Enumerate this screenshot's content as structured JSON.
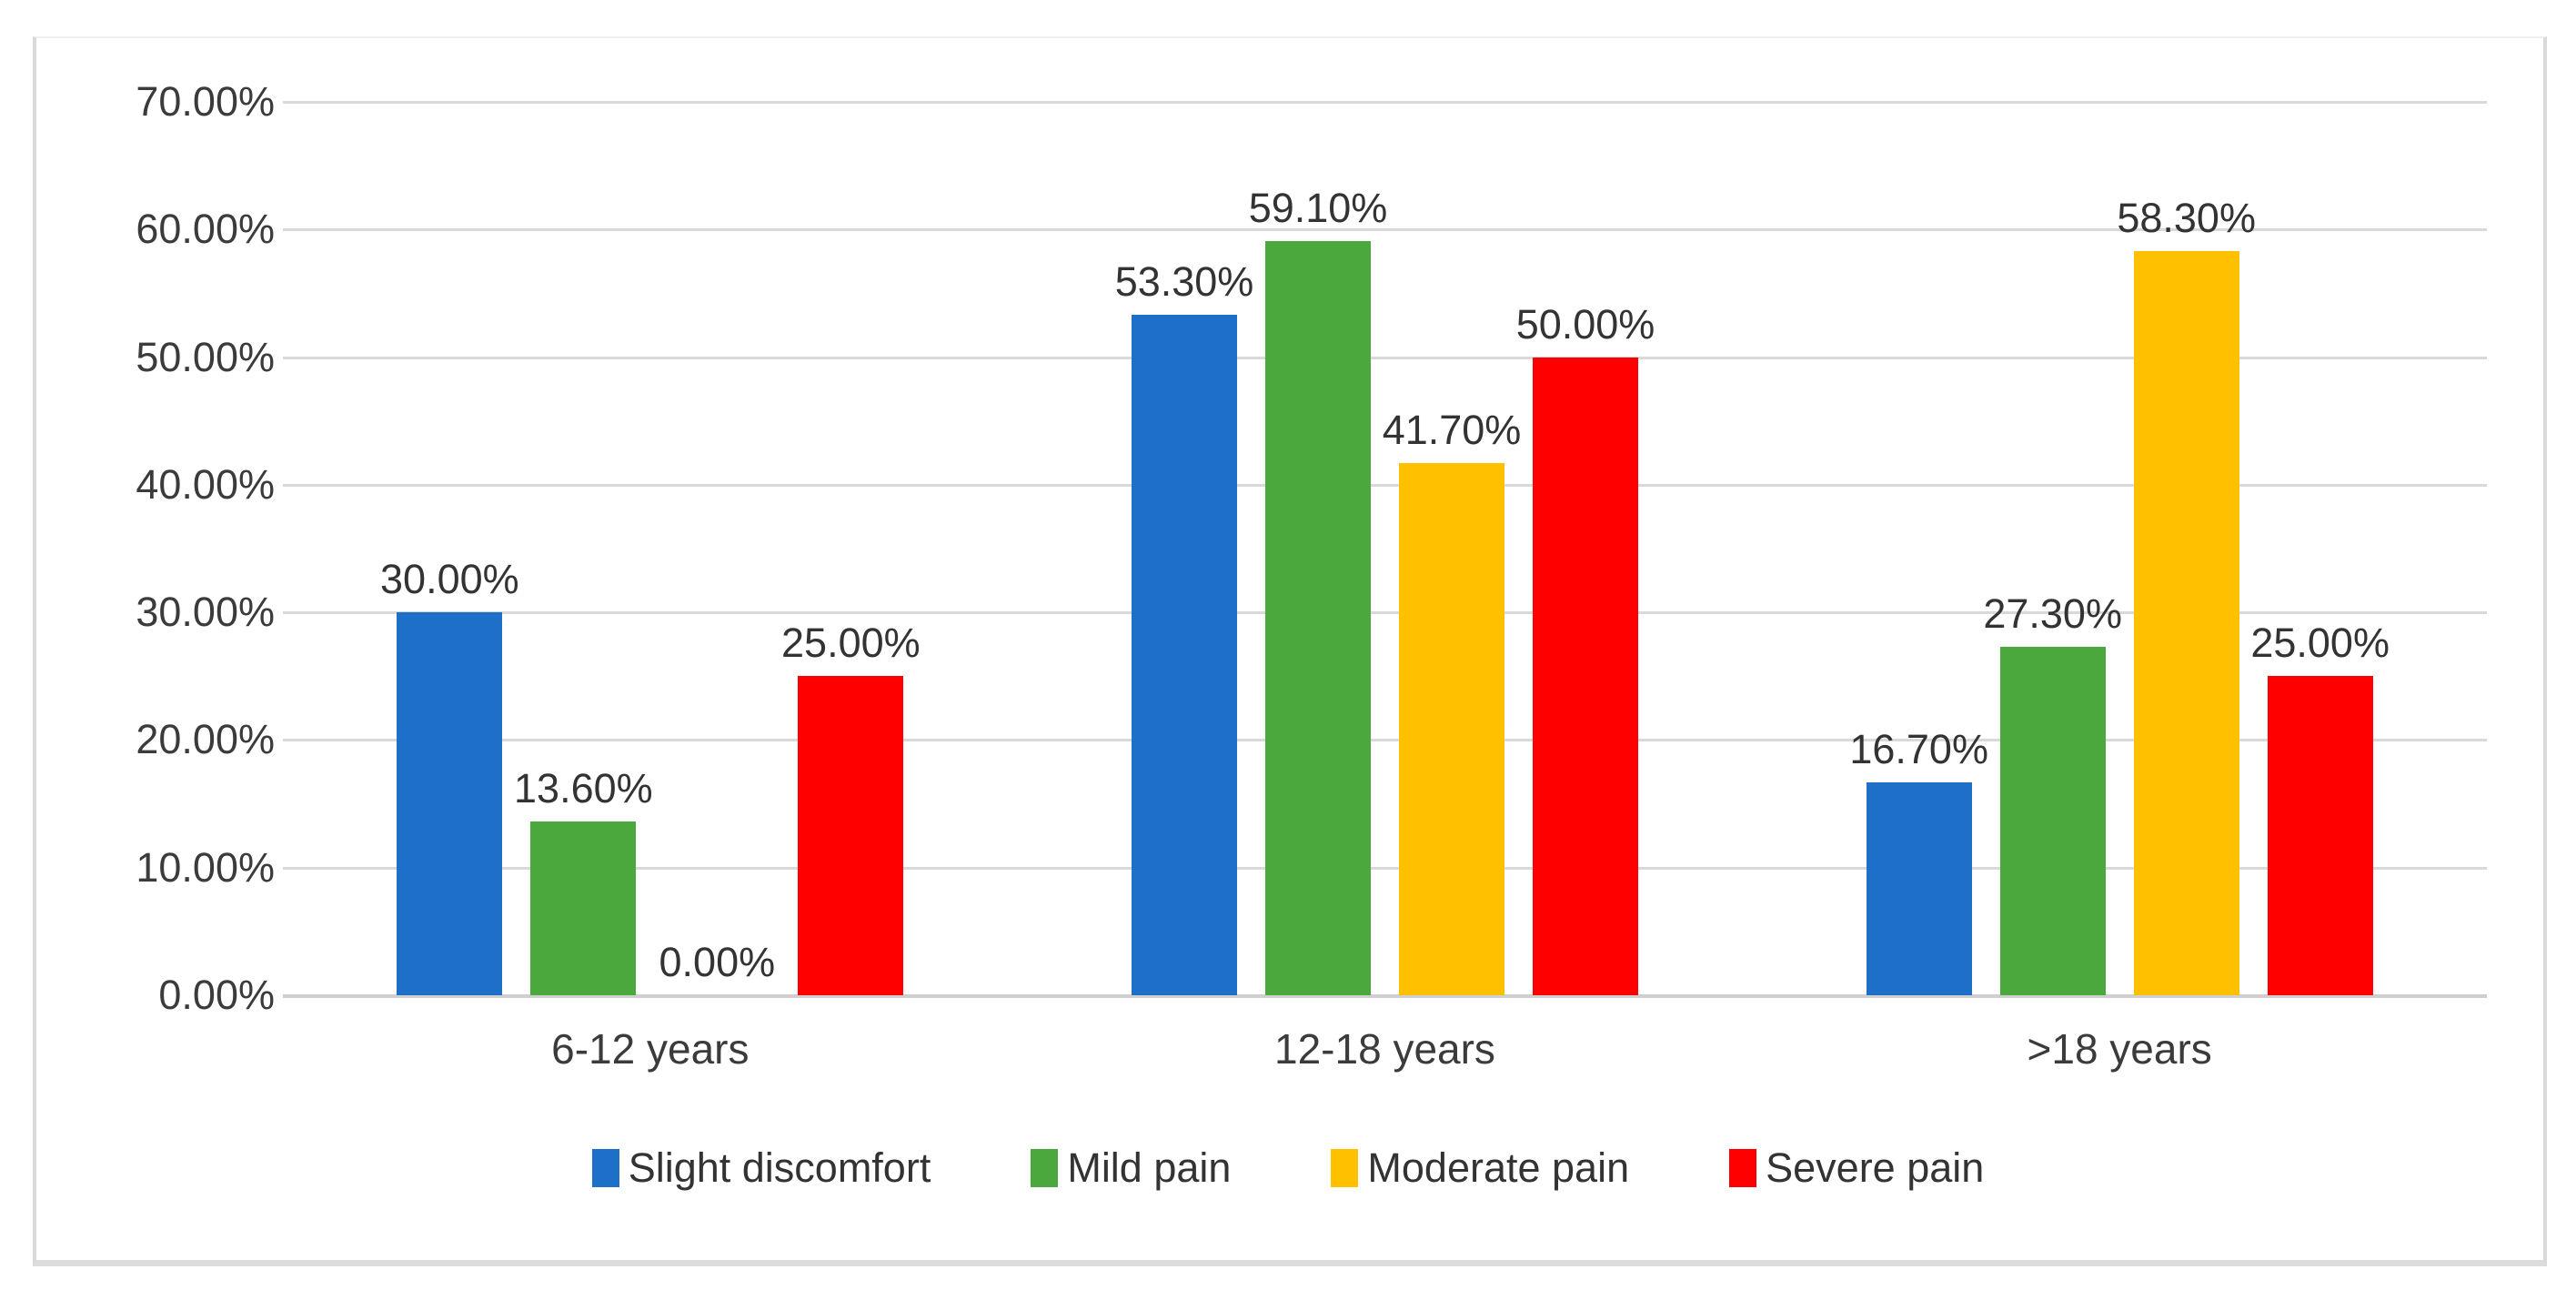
{
  "chart_data": {
    "type": "bar",
    "title": "",
    "xlabel": "",
    "ylabel": "",
    "categories": [
      "6-12 years",
      "12-18 years",
      ">18 years"
    ],
    "series": [
      {
        "name": "Slight discomfort",
        "color": "#1e6fc7",
        "values": [
          30.0,
          53.3,
          16.7
        ],
        "labels": [
          "30.00%",
          "53.30%",
          "16.70%"
        ]
      },
      {
        "name": "Mild pain",
        "color": "#4aa83c",
        "values": [
          13.6,
          59.1,
          27.3
        ],
        "labels": [
          "13.60%",
          "59.10%",
          "27.30%"
        ]
      },
      {
        "name": "Moderate pain",
        "color": "#ffc000",
        "values": [
          0.0,
          41.7,
          58.3
        ],
        "labels": [
          "0.00%",
          "41.70%",
          "58.30%"
        ]
      },
      {
        "name": "Severe pain",
        "color": "#fe0000",
        "values": [
          25.0,
          50.0,
          25.0
        ],
        "labels": [
          "25.00%",
          "50.00%",
          "25.00%"
        ]
      }
    ],
    "y_axis": {
      "min": 0,
      "max": 70,
      "step": 10,
      "tick_labels": [
        "0.00%",
        "10.00%",
        "20.00%",
        "30.00%",
        "40.00%",
        "50.00%",
        "60.00%",
        "70.00%"
      ]
    },
    "grid": true,
    "legend_position": "bottom",
    "gridline_color": "#d9d9d9"
  }
}
